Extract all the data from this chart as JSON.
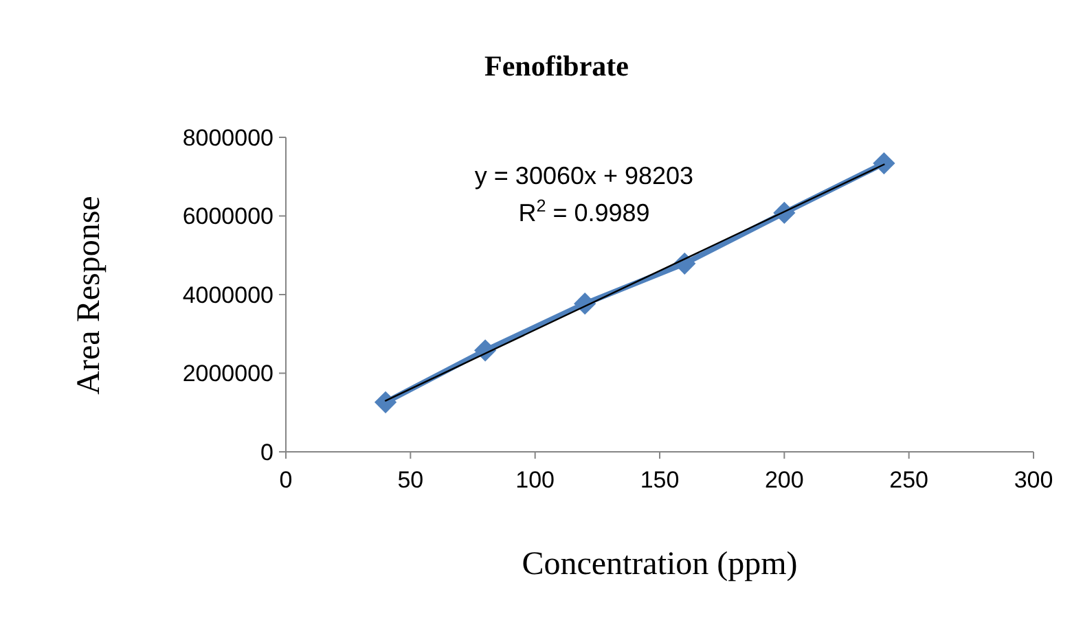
{
  "chart_data": {
    "type": "line",
    "title": "Fenofibrate",
    "xlabel": "Concentration (ppm)",
    "ylabel": "Area Response",
    "x": [
      40,
      80,
      120,
      160,
      200,
      240
    ],
    "series": [
      {
        "color": "#4f81bd",
        "values": [
          1260000,
          2580000,
          3770000,
          4790000,
          6080000,
          7340000
        ],
        "marker": "diamond"
      },
      {
        "type": "line",
        "color": "#000000",
        "x": [
          40,
          240
        ],
        "values": [
          1300000,
          7310000
        ],
        "marker": "none"
      }
    ],
    "xlim": [
      0,
      300
    ],
    "xticks": [
      0,
      50,
      100,
      150,
      200,
      250,
      300
    ],
    "ylim": [
      0,
      8000000
    ],
    "yticks": [
      0,
      2000000,
      4000000,
      6000000,
      8000000
    ],
    "annotations": [
      "y = 30060x + 98203",
      "R$^{2}$ = 0.9989"
    ],
    "grid": false,
    "line_style": "solid"
  }
}
